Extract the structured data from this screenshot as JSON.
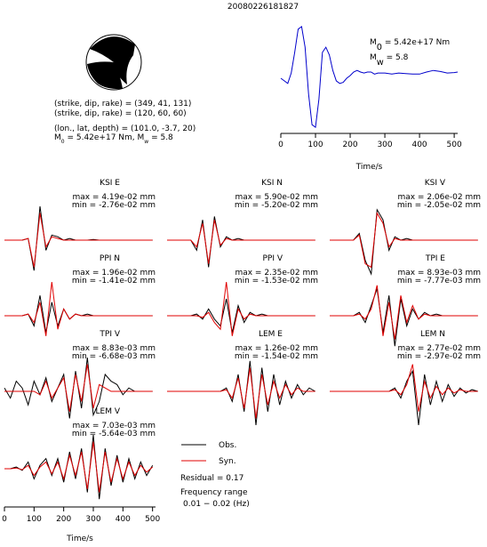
{
  "header": {
    "title": "20080226181827"
  },
  "mechanism": {
    "lines": [
      "(strike, dip, rake) = (349, 41, 131)",
      "(strike, dip, rake) = (120, 60, 60)",
      "(lon., lat, depth) = (101.0, -3.7, 20)"
    ],
    "moment": [
      {
        "t": "M"
      },
      {
        "t": "0",
        "sub": true
      },
      {
        "t": " = 5.42e+17 Nm, M"
      },
      {
        "t": "w",
        "sub": true
      },
      {
        "t": " = 5.8"
      }
    ]
  },
  "chart_data": [
    {
      "type": "line",
      "xlabel": "Time/s",
      "xlim": [
        0,
        510
      ],
      "xticks": [
        0,
        100,
        200,
        300,
        400,
        500
      ],
      "ylim": [
        -1,
        1.05
      ],
      "annotations": [
        [
          {
            "t": "M"
          },
          {
            "t": "0",
            "sub": true
          },
          {
            "t": " = 5.42e+17 Nm"
          }
        ],
        [
          {
            "t": "M"
          },
          {
            "t": "w",
            "sub": true
          },
          {
            "t": " = 5.8"
          }
        ]
      ],
      "x": [
        0,
        10,
        20,
        30,
        40,
        50,
        60,
        70,
        80,
        90,
        100,
        110,
        120,
        130,
        140,
        150,
        160,
        170,
        180,
        190,
        200,
        210,
        220,
        230,
        240,
        250,
        260,
        270,
        280,
        290,
        300,
        320,
        340,
        360,
        380,
        400,
        420,
        440,
        460,
        480,
        500,
        510
      ],
      "series": [
        {
          "name": "STF",
          "color": "#0000cc",
          "values": [
            0,
            -0.05,
            -0.1,
            0.1,
            0.5,
            0.95,
            1.0,
            0.6,
            -0.3,
            -0.9,
            -0.95,
            -0.4,
            0.5,
            0.6,
            0.45,
            0.15,
            -0.05,
            -0.1,
            -0.08,
            0,
            0.05,
            0.12,
            0.15,
            0.12,
            0.1,
            0.12,
            0.12,
            0.08,
            0.1,
            0.1,
            0.1,
            0.08,
            0.1,
            0.09,
            0.08,
            0.08,
            0.12,
            0.15,
            0.13,
            0.1,
            0.11,
            0.12
          ]
        }
      ]
    },
    {
      "type": "line",
      "title": "KSI E",
      "max": "max = 4.19e-02 mm",
      "min": "min = -2.76e-02 mm",
      "xlim": [
        0,
        510
      ],
      "ylim": [
        -1,
        1
      ],
      "x": [
        0,
        20,
        40,
        60,
        80,
        100,
        120,
        140,
        160,
        180,
        200,
        220,
        240,
        260,
        280,
        300,
        320,
        340,
        360,
        380,
        400,
        420,
        440,
        460,
        480,
        500
      ],
      "series": [
        {
          "name": "Obs.",
          "color": "#000000",
          "values": [
            0,
            0,
            0,
            0,
            0.05,
            -0.9,
            1.0,
            -0.3,
            0.15,
            0.1,
            0,
            0.05,
            0,
            0,
            0,
            0.02,
            0,
            0,
            0,
            0,
            0,
            0,
            0,
            0,
            0,
            0
          ]
        },
        {
          "name": "Syn.",
          "color": "#e00000",
          "values": [
            0,
            0,
            0,
            0,
            0.05,
            -0.8,
            0.8,
            -0.2,
            0.1,
            0.05,
            0,
            0,
            0,
            0,
            0,
            0,
            0,
            0,
            0,
            0,
            0,
            0,
            0,
            0,
            0,
            0
          ]
        }
      ]
    },
    {
      "type": "line",
      "title": "KSI N",
      "max": "max = 5.90e-02 mm",
      "min": "min = -5.20e-02 mm",
      "xlim": [
        0,
        510
      ],
      "ylim": [
        -1,
        1
      ],
      "x": [
        0,
        20,
        40,
        60,
        80,
        100,
        120,
        140,
        160,
        180,
        200,
        220,
        240,
        260,
        280,
        300,
        320,
        340,
        360,
        380,
        400,
        420,
        440,
        460,
        480,
        500
      ],
      "series": [
        {
          "name": "Obs.",
          "color": "#000000",
          "values": [
            0,
            0,
            0,
            0,
            0,
            -0.3,
            0.6,
            -0.8,
            0.7,
            -0.2,
            0.1,
            0,
            0.05,
            0,
            0,
            0,
            0,
            0,
            0,
            0,
            0,
            0,
            0,
            0,
            0,
            0
          ]
        },
        {
          "name": "Syn.",
          "color": "#e00000",
          "values": [
            0,
            0,
            0,
            0,
            0,
            -0.2,
            0.5,
            -0.7,
            0.6,
            -0.15,
            0.05,
            0,
            0,
            0,
            0,
            0,
            0,
            0,
            0,
            0,
            0,
            0,
            0,
            0,
            0,
            0
          ]
        }
      ]
    },
    {
      "type": "line",
      "title": "KSI V",
      "max": "max = 2.06e-02 mm",
      "min": "min = -2.05e-02 mm",
      "xlim": [
        0,
        510
      ],
      "ylim": [
        -1,
        1
      ],
      "x": [
        0,
        20,
        40,
        60,
        80,
        100,
        120,
        140,
        160,
        180,
        200,
        220,
        240,
        260,
        280,
        300,
        320,
        340,
        360,
        380,
        400,
        420,
        440,
        460,
        480,
        500
      ],
      "series": [
        {
          "name": "Obs.",
          "color": "#000000",
          "values": [
            0,
            0,
            0,
            0,
            0,
            0.2,
            -0.6,
            -1.0,
            0.9,
            0.6,
            -0.3,
            0.1,
            0,
            0.05,
            0,
            0,
            0,
            0,
            0,
            0,
            0,
            0,
            0,
            0,
            0,
            0
          ]
        },
        {
          "name": "Syn.",
          "color": "#e00000",
          "values": [
            0,
            0,
            0,
            0,
            0,
            0.15,
            -0.7,
            -0.8,
            0.8,
            0.5,
            -0.2,
            0.05,
            0,
            0,
            0,
            0,
            0,
            0,
            0,
            0,
            0,
            0,
            0,
            0,
            0,
            0
          ]
        }
      ]
    },
    {
      "type": "line",
      "title": "PPI N",
      "max": "max = 1.96e-02 mm",
      "min": "min = -1.41e-02 mm",
      "xlim": [
        0,
        510
      ],
      "ylim": [
        -1,
        1
      ],
      "x": [
        0,
        20,
        40,
        60,
        80,
        100,
        120,
        140,
        160,
        180,
        200,
        220,
        240,
        260,
        280,
        300,
        320,
        340,
        360,
        380,
        400,
        420,
        440,
        460,
        480,
        500
      ],
      "series": [
        {
          "name": "Obs.",
          "color": "#000000",
          "values": [
            0,
            0,
            0,
            0,
            0.05,
            -0.3,
            0.6,
            -0.5,
            0.4,
            -0.3,
            0.2,
            -0.1,
            0.05,
            0,
            0.05,
            0,
            0,
            0,
            0,
            0,
            0,
            0,
            0,
            0,
            0,
            0
          ]
        },
        {
          "name": "Syn.",
          "color": "#e00000",
          "values": [
            0,
            0,
            0,
            0,
            0.05,
            -0.2,
            0.4,
            -0.6,
            1.0,
            -0.4,
            0.2,
            -0.1,
            0.05,
            0,
            0,
            0,
            0,
            0,
            0,
            0,
            0,
            0,
            0,
            0,
            0,
            0
          ]
        }
      ]
    },
    {
      "type": "line",
      "title": "PPI V",
      "max": "max = 2.35e-02 mm",
      "min": "min = -1.53e-02 mm",
      "xlim": [
        0,
        510
      ],
      "ylim": [
        -1,
        1
      ],
      "x": [
        0,
        20,
        40,
        60,
        80,
        100,
        120,
        140,
        160,
        180,
        200,
        220,
        240,
        260,
        280,
        300,
        320,
        340,
        360,
        380,
        400,
        420,
        440,
        460,
        480,
        500
      ],
      "series": [
        {
          "name": "Obs.",
          "color": "#000000",
          "values": [
            0,
            0,
            0,
            0,
            0,
            0.05,
            -0.1,
            0.2,
            -0.1,
            -0.3,
            0.5,
            -0.5,
            0.3,
            -0.2,
            0.1,
            0,
            0.05,
            0,
            0,
            0,
            0,
            0,
            0,
            0,
            0,
            0
          ]
        },
        {
          "name": "Syn.",
          "color": "#e00000",
          "values": [
            0,
            0,
            0,
            0,
            0,
            0,
            -0.05,
            0.1,
            -0.2,
            -0.4,
            1.0,
            -0.6,
            0.2,
            -0.1,
            0.05,
            0,
            0,
            0,
            0,
            0,
            0,
            0,
            0,
            0,
            0,
            0
          ]
        }
      ]
    },
    {
      "type": "line",
      "title": "TPI E",
      "max": "max = 8.93e-03 mm",
      "min": "min = -7.77e-03 mm",
      "xlim": [
        0,
        510
      ],
      "ylim": [
        -1,
        1
      ],
      "x": [
        0,
        20,
        40,
        60,
        80,
        100,
        120,
        140,
        160,
        180,
        200,
        220,
        240,
        260,
        280,
        300,
        320,
        340,
        360,
        380,
        400,
        420,
        440,
        460,
        480,
        500
      ],
      "series": [
        {
          "name": "Obs.",
          "color": "#000000",
          "values": [
            0,
            0,
            0,
            0,
            0,
            0.1,
            -0.2,
            0.3,
            0.8,
            -0.5,
            0.6,
            -0.9,
            0.5,
            -0.3,
            0.2,
            -0.1,
            0.1,
            0,
            0.05,
            0,
            0,
            0,
            0,
            0,
            0,
            0
          ]
        },
        {
          "name": "Syn.",
          "color": "#e00000",
          "values": [
            0,
            0,
            0,
            0,
            0,
            0.05,
            -0.1,
            0.2,
            0.9,
            -0.6,
            0.4,
            -0.7,
            0.6,
            -0.2,
            0.3,
            -0.1,
            0.05,
            0,
            0,
            0,
            0,
            0,
            0,
            0,
            0,
            0
          ]
        }
      ]
    },
    {
      "type": "line",
      "title": "TPI V",
      "max": "max = 8.83e-03 mm",
      "min": "min = -6.68e-03 mm",
      "xlim": [
        0,
        510
      ],
      "ylim": [
        -1,
        1
      ],
      "x": [
        0,
        20,
        40,
        60,
        80,
        100,
        120,
        140,
        160,
        180,
        200,
        220,
        240,
        260,
        280,
        300,
        320,
        340,
        360,
        380,
        400,
        420,
        440,
        460,
        480,
        500
      ],
      "series": [
        {
          "name": "Obs.",
          "color": "#000000",
          "values": [
            0.1,
            -0.2,
            0.3,
            0.1,
            -0.4,
            0.3,
            -0.1,
            0.4,
            -0.3,
            0.1,
            0.5,
            -0.8,
            0.6,
            -0.5,
            1.0,
            -0.7,
            -0.3,
            0.5,
            0.3,
            0.2,
            -0.1,
            0.1,
            0,
            0,
            0,
            0
          ]
        },
        {
          "name": "Syn.",
          "color": "#e00000",
          "values": [
            0,
            0,
            0,
            0,
            0,
            0,
            -0.1,
            0.3,
            -0.2,
            0.1,
            0.4,
            -0.6,
            0.5,
            -0.3,
            0.8,
            -0.5,
            0.2,
            0.1,
            0,
            0,
            0,
            0,
            0,
            0,
            0,
            0
          ]
        }
      ]
    },
    {
      "type": "line",
      "title": "LEM E",
      "max": "max = 1.26e-02 mm",
      "min": "min = -1.54e-02 mm",
      "xlim": [
        0,
        510
      ],
      "ylim": [
        -1,
        1
      ],
      "x": [
        0,
        20,
        40,
        60,
        80,
        100,
        120,
        140,
        160,
        180,
        200,
        220,
        240,
        260,
        280,
        300,
        320,
        340,
        360,
        380,
        400,
        420,
        440,
        460,
        480,
        500
      ],
      "series": [
        {
          "name": "Obs.",
          "color": "#000000",
          "values": [
            0,
            0,
            0,
            0,
            0,
            0,
            0,
            0,
            0,
            0,
            0.1,
            -0.3,
            0.5,
            -0.6,
            0.9,
            -1.0,
            0.7,
            -0.6,
            0.5,
            -0.4,
            0.3,
            -0.2,
            0.2,
            -0.1,
            0.1,
            0
          ]
        },
        {
          "name": "Syn.",
          "color": "#e00000",
          "values": [
            0,
            0,
            0,
            0,
            0,
            0,
            0,
            0,
            0,
            0,
            0.05,
            -0.2,
            0.4,
            -0.5,
            0.7,
            -0.8,
            0.5,
            -0.4,
            0.3,
            -0.2,
            0.2,
            -0.1,
            0.1,
            0,
            0,
            0
          ]
        }
      ]
    },
    {
      "type": "line",
      "title": "LEM N",
      "max": "max = 2.77e-02 mm",
      "min": "min = -2.97e-02 mm",
      "xlim": [
        0,
        510
      ],
      "ylim": [
        -1,
        1
      ],
      "x": [
        0,
        20,
        40,
        60,
        80,
        100,
        120,
        140,
        160,
        180,
        200,
        220,
        240,
        260,
        280,
        300,
        320,
        340,
        360,
        380,
        400,
        420,
        440,
        460,
        480,
        500
      ],
      "series": [
        {
          "name": "Obs.",
          "color": "#000000",
          "values": [
            0,
            0,
            0,
            0,
            0,
            0,
            0,
            0,
            0,
            0,
            0,
            0.1,
            -0.2,
            0.3,
            0.6,
            -1.0,
            0.5,
            -0.4,
            0.3,
            -0.3,
            0.2,
            -0.15,
            0.1,
            -0.05,
            0.05,
            0
          ]
        },
        {
          "name": "Syn.",
          "color": "#e00000",
          "values": [
            0,
            0,
            0,
            0,
            0,
            0,
            0,
            0,
            0,
            0,
            0,
            0.05,
            -0.1,
            0.2,
            0.8,
            -0.6,
            0.3,
            -0.2,
            0.15,
            -0.1,
            0.1,
            -0.05,
            0.05,
            0,
            0,
            0
          ]
        }
      ]
    },
    {
      "type": "line",
      "title": "LEM V",
      "max": "max = 7.03e-03 mm",
      "min": "min = -5.64e-03 mm",
      "xlabel": "Time/s",
      "xlim": [
        0,
        510
      ],
      "xticks": [
        0,
        100,
        200,
        300,
        400,
        500
      ],
      "ylim": [
        -1,
        1
      ],
      "x": [
        0,
        20,
        40,
        60,
        80,
        100,
        120,
        140,
        160,
        180,
        200,
        220,
        240,
        260,
        280,
        300,
        320,
        340,
        360,
        380,
        400,
        420,
        440,
        460,
        480,
        500
      ],
      "series": [
        {
          "name": "Obs.",
          "color": "#000000",
          "values": [
            0,
            0,
            0.05,
            -0.05,
            0.2,
            -0.3,
            0.1,
            0.3,
            -0.2,
            0.3,
            -0.4,
            0.5,
            -0.3,
            0.6,
            -0.7,
            1.0,
            -0.9,
            0.6,
            -0.5,
            0.4,
            -0.4,
            0.3,
            -0.3,
            0.2,
            -0.2,
            0.1
          ]
        },
        {
          "name": "Syn.",
          "color": "#e00000",
          "values": [
            0,
            0,
            0.02,
            -0.03,
            0.1,
            -0.2,
            0.05,
            0.2,
            -0.15,
            0.2,
            -0.3,
            0.4,
            -0.2,
            0.5,
            -0.6,
            0.8,
            -0.7,
            0.5,
            -0.4,
            0.3,
            -0.3,
            0.2,
            -0.2,
            0.1,
            -0.1,
            0.05
          ]
        }
      ],
      "residual": "Residual = 0.17",
      "frequency": [
        "Frequency range",
        "0.01 − 0.02 (Hz)"
      ]
    }
  ]
}
